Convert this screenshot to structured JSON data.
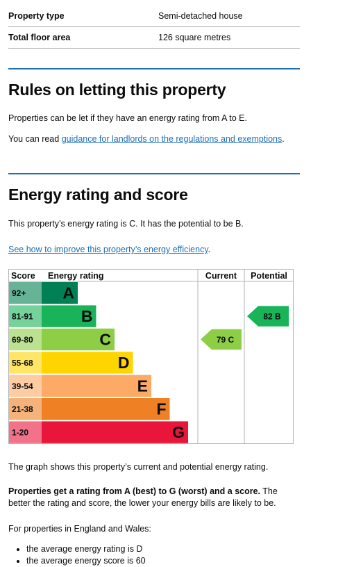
{
  "summary": {
    "rows": [
      {
        "label": "Property type",
        "value": "Semi-detached house"
      },
      {
        "label": "Total floor area",
        "value": "126 square metres"
      }
    ]
  },
  "rules": {
    "heading": "Rules on letting this property",
    "para1": "Properties can be let if they have an energy rating from A to E.",
    "para2_prefix": "You can read ",
    "para2_link": "guidance for landlords on the regulations and exemptions",
    "para2_suffix": "."
  },
  "energy": {
    "heading": "Energy rating and score",
    "rating_text": "This property’s energy rating is C. It has the potential to be B.",
    "improve_link": "See how to improve this property’s energy efficiency",
    "improve_suffix": "."
  },
  "chart_data": {
    "type": "table",
    "columns": [
      "Score",
      "Energy rating",
      "Current",
      "Potential"
    ],
    "bands": [
      {
        "score": "92+",
        "letter": "A",
        "color": "#008054",
        "score_bg": "#66b398"
      },
      {
        "score": "81-91",
        "letter": "B",
        "color": "#19b459",
        "score_bg": "#75d29b"
      },
      {
        "score": "69-80",
        "letter": "C",
        "color": "#8dce46",
        "score_bg": "#bbe290"
      },
      {
        "score": "55-68",
        "letter": "D",
        "color": "#ffd500",
        "score_bg": "#ffe666"
      },
      {
        "score": "39-54",
        "letter": "E",
        "color": "#fcaa65",
        "score_bg": "#fdcca3"
      },
      {
        "score": "21-38",
        "letter": "F",
        "color": "#ef8023",
        "score_bg": "#f5b37b"
      },
      {
        "score": "1-20",
        "letter": "G",
        "color": "#e9153b",
        "score_bg": "#f27389"
      }
    ],
    "current": {
      "score": 79,
      "letter": "C",
      "label": "79 C",
      "color": "#8dce46"
    },
    "potential": {
      "score": 82,
      "letter": "B",
      "label": "82 B",
      "color": "#19b459"
    }
  },
  "graph_text": "The graph shows this property’s current and potential energy rating.",
  "rating_info": {
    "bold": "Properties get a rating from A (best) to G (worst) and a score.",
    "rest": " The better the rating and score, the lower your energy bills are likely to be."
  },
  "averages": {
    "intro": "For properties in England and Wales:",
    "items": [
      "the average energy rating is D",
      "the average energy score is 60"
    ]
  }
}
